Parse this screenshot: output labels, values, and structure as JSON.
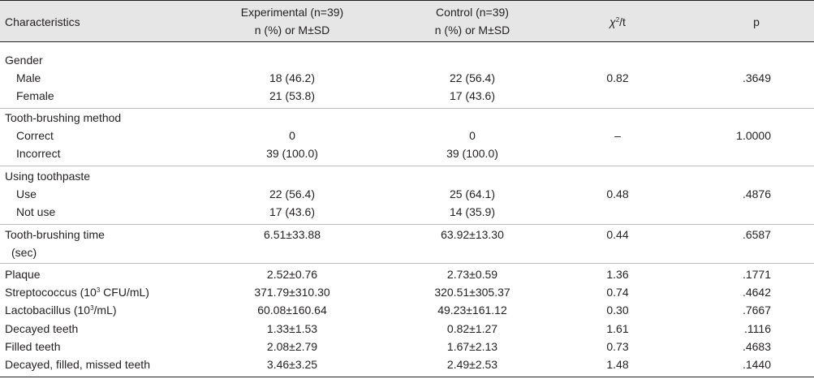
{
  "header": {
    "characteristics": "Characteristics",
    "experimental": "Experimental (n=39)",
    "control": "Control (n=39)",
    "stat_sub": "n (%) or M±SD",
    "chi_symbol": "χ",
    "chi_sup": "2",
    "chi_suffix": "/t",
    "p": "p"
  },
  "groups": {
    "gender": {
      "title": "Gender",
      "male": {
        "label": "Male",
        "exp": "18 (46.2)",
        "ctrl": "22 (56.4)",
        "stat": "0.82",
        "p": ".3649"
      },
      "female": {
        "label": "Female",
        "exp": "21 (53.8)",
        "ctrl": "17 (43.6)"
      }
    },
    "brushing_method": {
      "title": "Tooth-brushing method",
      "correct": {
        "label": "Correct",
        "exp": "0",
        "ctrl": "0",
        "stat": "–",
        "p": "1.0000"
      },
      "incorrect": {
        "label": "Incorrect",
        "exp": "39 (100.0)",
        "ctrl": "39 (100.0)"
      }
    },
    "toothpaste": {
      "title": "Using toothpaste",
      "use": {
        "label": "Use",
        "exp": "22 (56.4)",
        "ctrl": "25 (64.1)",
        "stat": "0.48",
        "p": ".4876"
      },
      "not_use": {
        "label": "Not use",
        "exp": "17 (43.6)",
        "ctrl": "14 (35.9)"
      }
    },
    "brushing_time": {
      "label": "Tooth-brushing time",
      "label2": "(sec)",
      "exp": "6.51±33.88",
      "ctrl": "63.92±13.30",
      "stat": "0.44",
      "p": ".6587"
    }
  },
  "rows": {
    "plaque": {
      "label": "Plaque",
      "exp": "2.52±0.76",
      "ctrl": "2.73±0.59",
      "stat": "1.36",
      "p": ".1771"
    },
    "strep": {
      "label_a": "Streptococcus (10",
      "label_sup": "3",
      "label_b": " CFU/mL)",
      "exp": "371.79±310.30",
      "ctrl": "320.51±305.37",
      "stat": "0.74",
      "p": ".4642"
    },
    "lacto": {
      "label_a": "Lactobacillus (10",
      "label_sup": "3",
      "label_b": "/mL)",
      "exp": "60.08±160.64",
      "ctrl": "49.23±161.12",
      "stat": "0.30",
      "p": ".7667"
    },
    "decayed": {
      "label": "Decayed teeth",
      "exp": "1.33±1.53",
      "ctrl": "0.82±1.27",
      "stat": "1.61",
      "p": ".1116"
    },
    "filled": {
      "label": "Filled teeth",
      "exp": "2.08±2.79",
      "ctrl": "1.67±2.13",
      "stat": "0.73",
      "p": ".4683"
    },
    "dmft": {
      "label": "Decayed, filled, missed teeth",
      "exp": "3.46±3.25",
      "ctrl": "2.49±2.53",
      "stat": "1.48",
      "p": ".1440"
    }
  }
}
